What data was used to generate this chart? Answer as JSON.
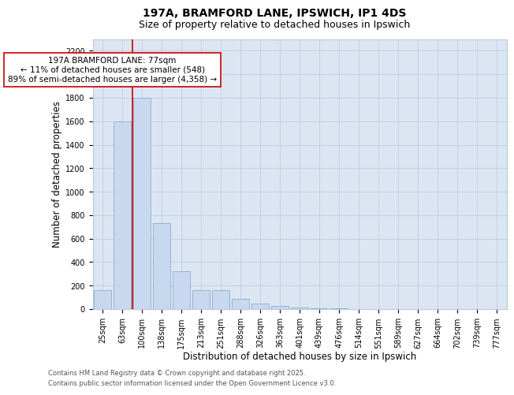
{
  "title_line1": "197A, BRAMFORD LANE, IPSWICH, IP1 4DS",
  "title_line2": "Size of property relative to detached houses in Ipswich",
  "xlabel": "Distribution of detached houses by size in Ipswich",
  "ylabel": "Number of detached properties",
  "categories": [
    "25sqm",
    "63sqm",
    "100sqm",
    "138sqm",
    "175sqm",
    "213sqm",
    "251sqm",
    "288sqm",
    "326sqm",
    "363sqm",
    "401sqm",
    "439sqm",
    "476sqm",
    "514sqm",
    "551sqm",
    "589sqm",
    "627sqm",
    "664sqm",
    "702sqm",
    "739sqm",
    "777sqm"
  ],
  "values": [
    160,
    1600,
    1800,
    730,
    325,
    160,
    160,
    85,
    50,
    30,
    15,
    10,
    5,
    1,
    0,
    0,
    0,
    0,
    0,
    0,
    0
  ],
  "bar_color": "#c8d8ee",
  "bar_edge_color": "#89aed4",
  "vline_x": 1.5,
  "vline_color": "#cc0000",
  "annotation_text": "197A BRAMFORD LANE: 77sqm\n← 11% of detached houses are smaller (548)\n89% of semi-detached houses are larger (4,358) →",
  "annotation_box_facecolor": "#ffffff",
  "annotation_box_edgecolor": "#cc0000",
  "ylim": [
    0,
    2300
  ],
  "yticks": [
    0,
    200,
    400,
    600,
    800,
    1000,
    1200,
    1400,
    1600,
    1800,
    2000,
    2200
  ],
  "plot_bg_color": "#dce6f2",
  "fig_bg_color": "#ffffff",
  "grid_color": "#b8c8de",
  "footer_line1": "Contains HM Land Registry data © Crown copyright and database right 2025.",
  "footer_line2": "Contains public sector information licensed under the Open Government Licence v3.0.",
  "title_fontsize": 10,
  "subtitle_fontsize": 9,
  "tick_fontsize": 7,
  "label_fontsize": 8.5,
  "annotation_fontsize": 7.5,
  "footer_fontsize": 6
}
